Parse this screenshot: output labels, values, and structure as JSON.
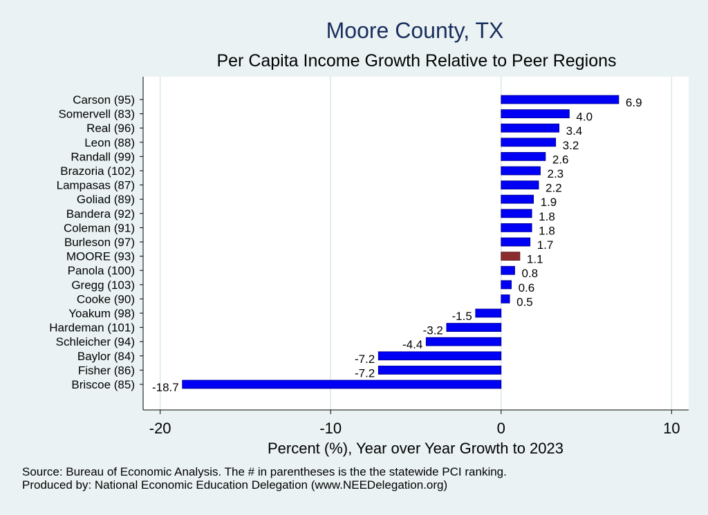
{
  "title": "Moore County, TX",
  "subtitle": "Per Capita Income Growth Relative to Peer Regions",
  "footer": {
    "source": "Source: Bureau of Economic Analysis. The # in parentheses is the the statewide PCI ranking.",
    "produced_by": "Produced by: National Economic Education Delegation (www.NEEDelegation.org)"
  },
  "colors": {
    "bar": "#0000f5",
    "highlight": "#8b2d2f",
    "grid": "#d8e7ea",
    "plot_bg": "#ffffff"
  },
  "chart_data": {
    "type": "bar",
    "orientation": "horizontal",
    "title": "Moore County, TX",
    "subtitle": "Per Capita Income Growth Relative to Peer Regions",
    "xlabel": "Percent (%), Year over Year Growth to 2023",
    "ylabel": "",
    "xlim": [
      -21,
      11
    ],
    "xticks": [
      -20,
      -10,
      0,
      10
    ],
    "grid": true,
    "legend": "none",
    "highlight": "MOORE (93)",
    "categories": [
      "Carson (95)",
      "Somervell (83)",
      "Real (96)",
      "Leon (88)",
      "Randall (99)",
      "Brazoria (102)",
      "Lampasas (87)",
      "Goliad (89)",
      "Bandera (92)",
      "Coleman (91)",
      "Burleson (97)",
      "MOORE (93)",
      "Panola (100)",
      "Gregg (103)",
      "Cooke (90)",
      "Yoakum (98)",
      "Hardeman (101)",
      "Schleicher (94)",
      "Baylor (84)",
      "Fisher (86)",
      "Briscoe (85)"
    ],
    "values": [
      6.9,
      4.0,
      3.4,
      3.2,
      2.6,
      2.3,
      2.2,
      1.9,
      1.8,
      1.8,
      1.7,
      1.1,
      0.8,
      0.6,
      0.5,
      -1.5,
      -3.2,
      -4.4,
      -7.2,
      -7.2,
      -18.7
    ],
    "value_labels": [
      "6.9",
      "4.0",
      "3.4",
      "3.2",
      "2.6",
      "2.3",
      "2.2",
      "1.9",
      "1.8",
      "1.8",
      "1.7",
      "1.1",
      "0.8",
      "0.6",
      "0.5",
      "-1.5",
      "-3.2",
      "-4.4",
      "-7.2",
      "-7.2",
      "-18.7"
    ]
  }
}
